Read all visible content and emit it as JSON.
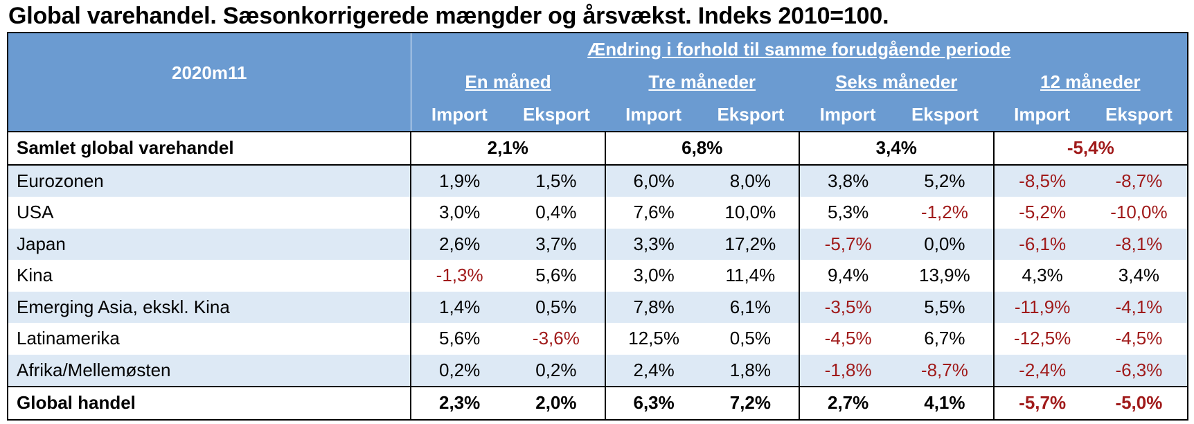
{
  "title": "Global varehandel. Sæsonkorrigerede mængder og årsvækst. Indeks 2010=100.",
  "header": {
    "corner_label": "2020m11",
    "span_label": "Ændring i forhold til samme forudgående periode",
    "periods": [
      "En måned",
      "Tre måneder",
      "Seks måneder",
      "12 måneder"
    ],
    "import_label": "Import",
    "export_label": "Eksport"
  },
  "total_row": {
    "label": "Samlet global varehandel",
    "values": [
      "2,1%",
      "6,8%",
      "3,4%",
      "-5,4%"
    ]
  },
  "rows": [
    {
      "label": "Eurozonen",
      "values": [
        "1,9%",
        "1,5%",
        "6,0%",
        "8,0%",
        "3,8%",
        "5,2%",
        "-8,5%",
        "-8,7%"
      ]
    },
    {
      "label": "USA",
      "values": [
        "3,0%",
        "0,4%",
        "7,6%",
        "10,0%",
        "5,3%",
        "-1,2%",
        "-5,2%",
        "-10,0%"
      ]
    },
    {
      "label": "Japan",
      "values": [
        "2,6%",
        "3,7%",
        "3,3%",
        "17,2%",
        "-5,7%",
        "0,0%",
        "-6,1%",
        "-8,1%"
      ]
    },
    {
      "label": "Kina",
      "values": [
        "-1,3%",
        "5,6%",
        "3,0%",
        "11,4%",
        "9,4%",
        "13,9%",
        "4,3%",
        "3,4%"
      ]
    },
    {
      "label": "Emerging Asia, ekskl. Kina",
      "values": [
        "1,4%",
        "0,5%",
        "7,8%",
        "6,1%",
        "-3,5%",
        "5,5%",
        "-11,9%",
        "-4,1%"
      ]
    },
    {
      "label": "Latinamerika",
      "values": [
        "5,6%",
        "-3,6%",
        "12,5%",
        "0,5%",
        "-4,5%",
        "6,7%",
        "-12,5%",
        "-4,5%"
      ]
    },
    {
      "label": "Afrika/Mellemøsten",
      "values": [
        "0,2%",
        "0,2%",
        "2,4%",
        "1,8%",
        "-1,8%",
        "-8,7%",
        "-2,4%",
        "-6,3%"
      ]
    }
  ],
  "global_row": {
    "label": "Global handel",
    "values": [
      "2,3%",
      "2,0%",
      "6,3%",
      "7,2%",
      "2,7%",
      "4,1%",
      "-5,7%",
      "-5,0%"
    ]
  },
  "colors": {
    "header_bg": "#6b9bd1",
    "alt_row_bg": "#dde9f5",
    "negative_text": "#a01a1a"
  }
}
